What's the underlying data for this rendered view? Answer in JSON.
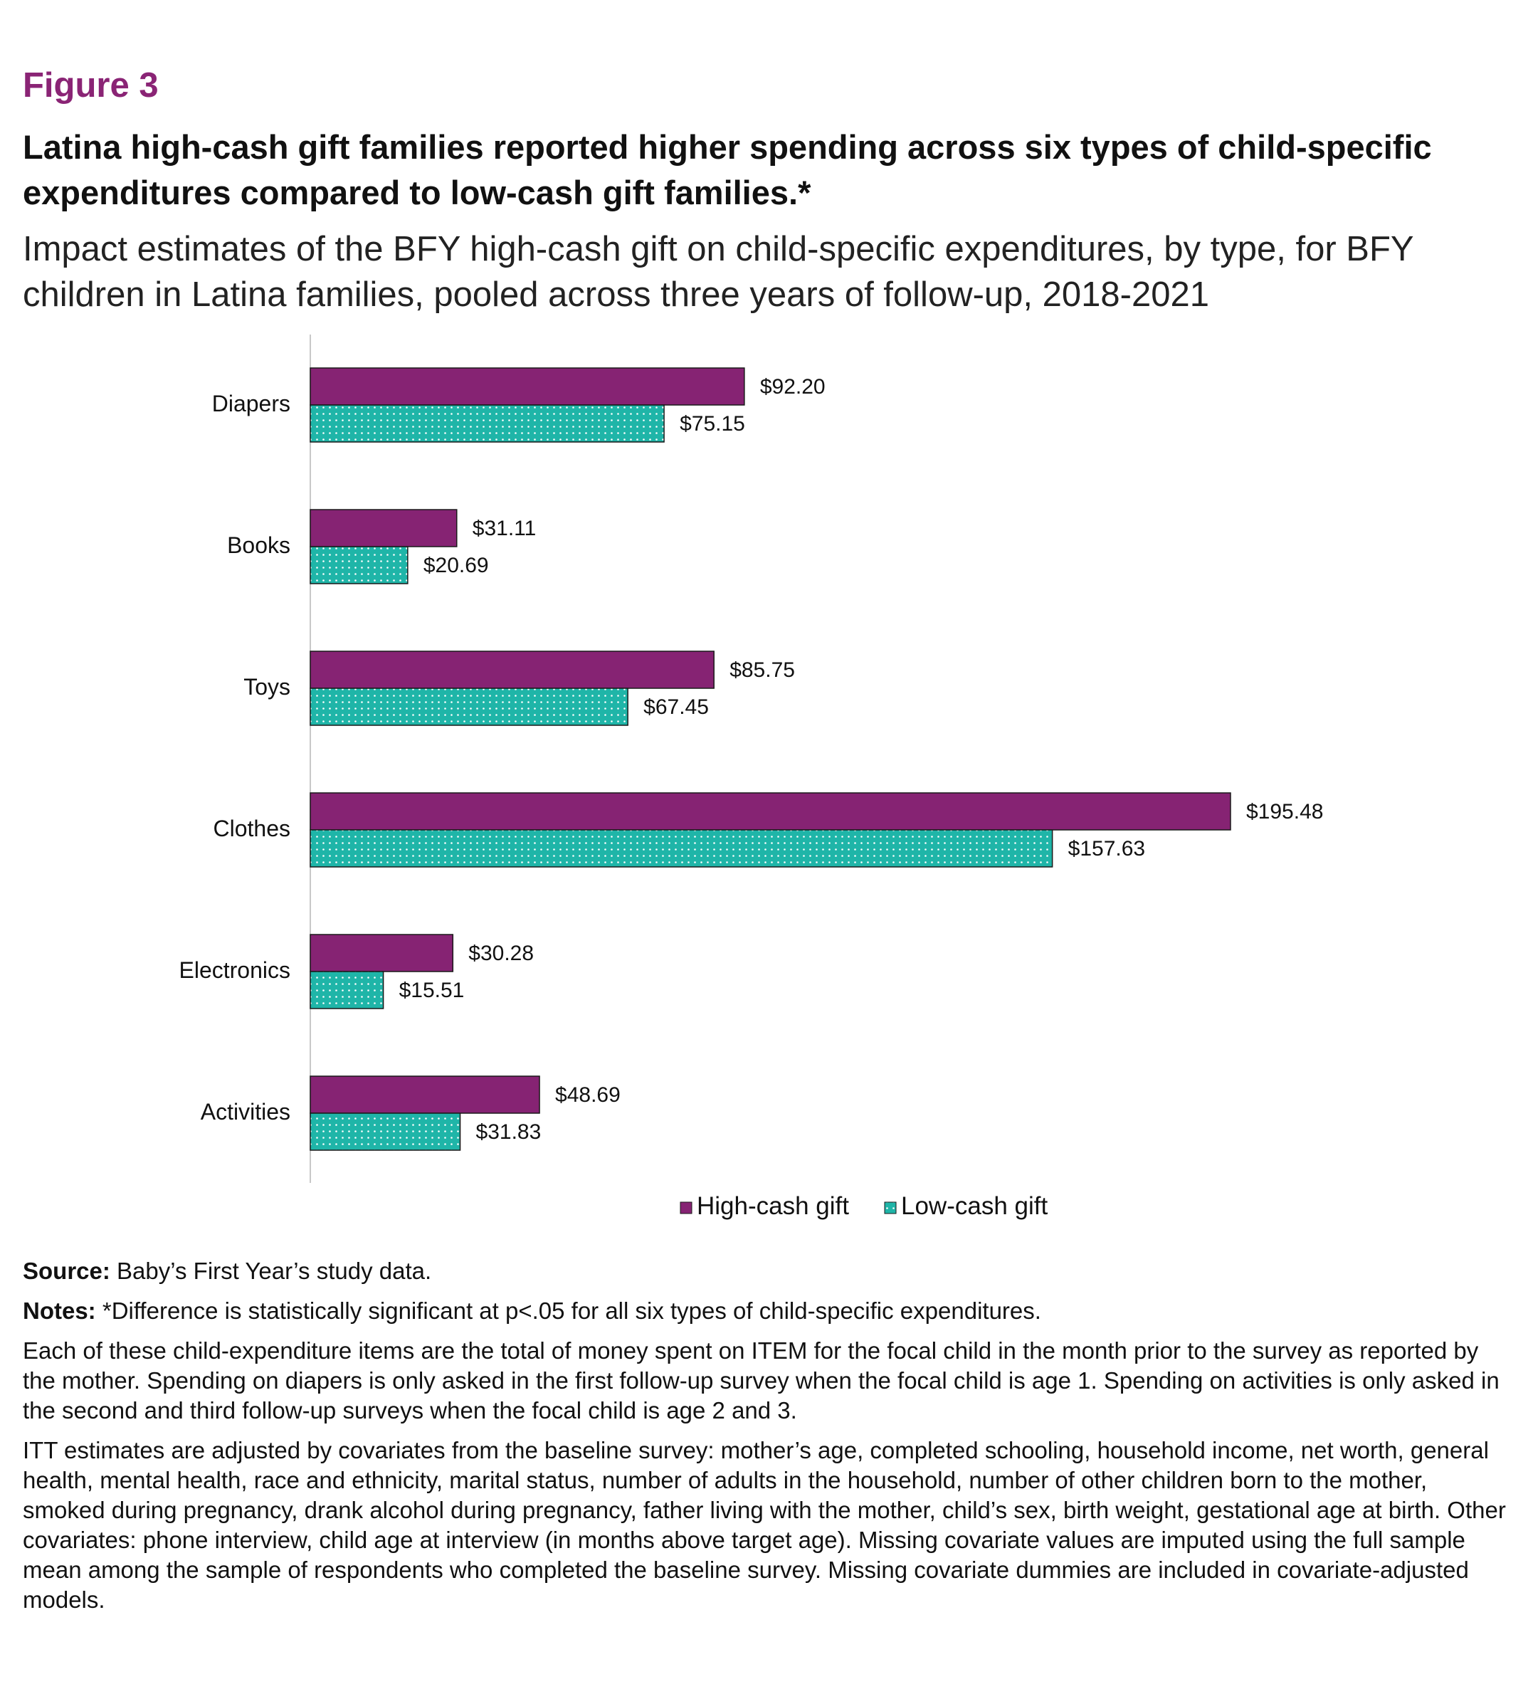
{
  "figure": {
    "label": "Figure 3",
    "title": "Latina high-cash gift families reported higher spending across six types of child-specific expenditures compared to low-cash gift families.*",
    "subtitle": "Impact estimates of the BFY high-cash gift on child-specific expenditures, by type, for BFY children in Latina families, pooled across three years of follow-up, 2018-2021"
  },
  "chart_data": {
    "type": "bar",
    "orientation": "horizontal",
    "categories": [
      "Diapers",
      "Books",
      "Toys",
      "Clothes",
      "Electronics",
      "Activities"
    ],
    "series": [
      {
        "name": "High-cash gift",
        "color": "#862373",
        "pattern": "solid",
        "values": [
          92.2,
          31.11,
          85.75,
          195.48,
          30.28,
          48.69
        ],
        "labels": [
          "$92.20",
          "$31.11",
          "$85.75",
          "$195.48",
          "$30.28",
          "$48.69"
        ]
      },
      {
        "name": "Low-cash gift",
        "color": "#1fb5a8",
        "pattern": "dotted",
        "values": [
          75.15,
          20.69,
          67.45,
          157.63,
          15.51,
          31.83
        ],
        "labels": [
          "$75.15",
          "$20.69",
          "$67.45",
          "$157.63",
          "$15.51",
          "$31.83"
        ]
      }
    ],
    "title": "",
    "xlabel": "",
    "ylabel": "",
    "xlim": [
      0,
      195.48
    ],
    "grid": false,
    "legend_position": "bottom"
  },
  "notes": {
    "source_label": "Source:",
    "source_text": "Baby’s First Year’s study data.",
    "notes_label": "Notes:",
    "notes_text": "*Difference is statistically significant at p<.05 for all six types of child-specific expenditures.",
    "paragraph1": "Each of these child-expenditure items are the total of money spent on ITEM for the focal child in the month prior to the survey as reported by the mother. Spending on diapers is only asked in the first follow-up survey when the focal child is age 1. Spending on activities is only asked in the second and third follow-up surveys when the focal child is age 2 and 3.",
    "paragraph2": "ITT estimates are adjusted by covariates from the baseline survey: mother’s age, completed schooling, household income, net worth, general health, mental health, race and ethnicity, marital status, number of adults in the household, number of other children born to the mother, smoked during pregnancy, drank alcohol during pregnancy, father living with the mother, child’s sex, birth weight, gestational age at birth. Other covariates: phone interview, child age at interview (in months above target age). Missing covariate values are imputed using the full sample mean among the sample of respondents who completed the baseline survey. Missing covariate dummies are included in covariate-adjusted models."
  }
}
